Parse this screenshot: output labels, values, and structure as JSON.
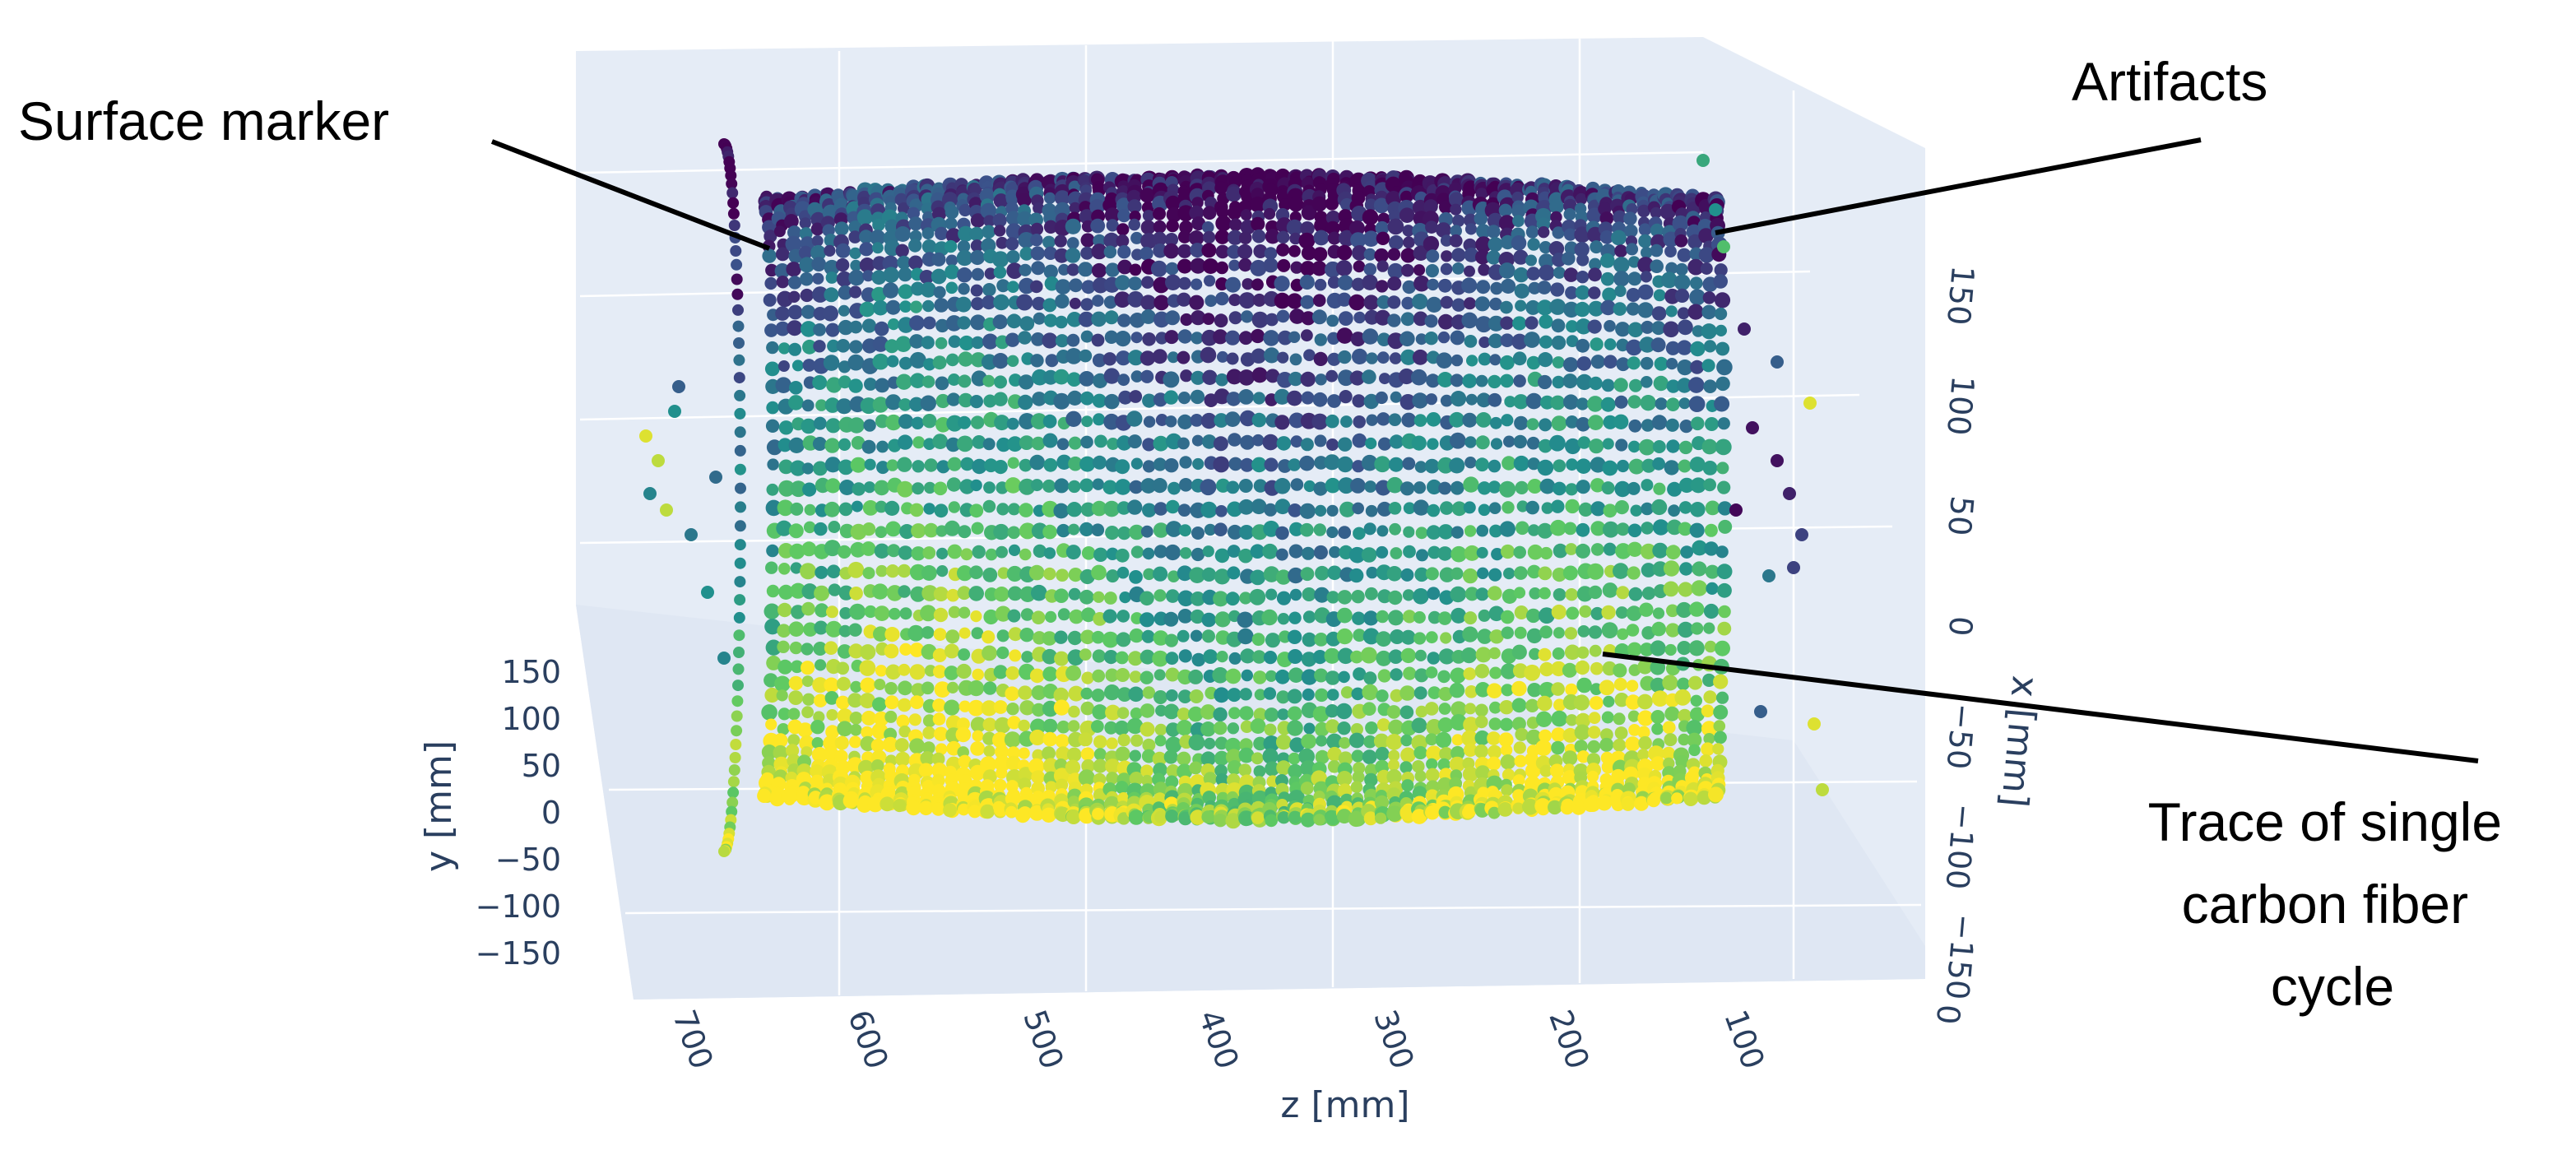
{
  "chart_data": {
    "type": "scatter",
    "dimensions": 3,
    "axes": {
      "x": {
        "label": "x [mm]",
        "ticks": [
          "−150",
          "−100",
          "−50",
          "0",
          "50",
          "100",
          "150"
        ],
        "range": [
          -150,
          150
        ]
      },
      "y": {
        "label": "y [mm]",
        "ticks": [
          "150",
          "100",
          "50",
          "0",
          "−50",
          "−100",
          "−150"
        ],
        "range": [
          -150,
          150
        ]
      },
      "z": {
        "label": "z [mm]",
        "ticks": [
          "700",
          "600",
          "500",
          "400",
          "300",
          "200",
          "100"
        ],
        "range": [
          0,
          720
        ]
      },
      "corner_label": "0"
    },
    "grid": true,
    "colorscale": [
      "#440154",
      "#3b528b",
      "#21908d",
      "#5dc963",
      "#fde725"
    ],
    "annotations": [
      {
        "id": "surface-marker",
        "text": "Surface marker"
      },
      {
        "id": "artifacts",
        "text": "Artifacts"
      },
      {
        "id": "trace",
        "lines": [
          "Trace of single",
          "carbon fiber",
          "cycle"
        ]
      }
    ]
  }
}
